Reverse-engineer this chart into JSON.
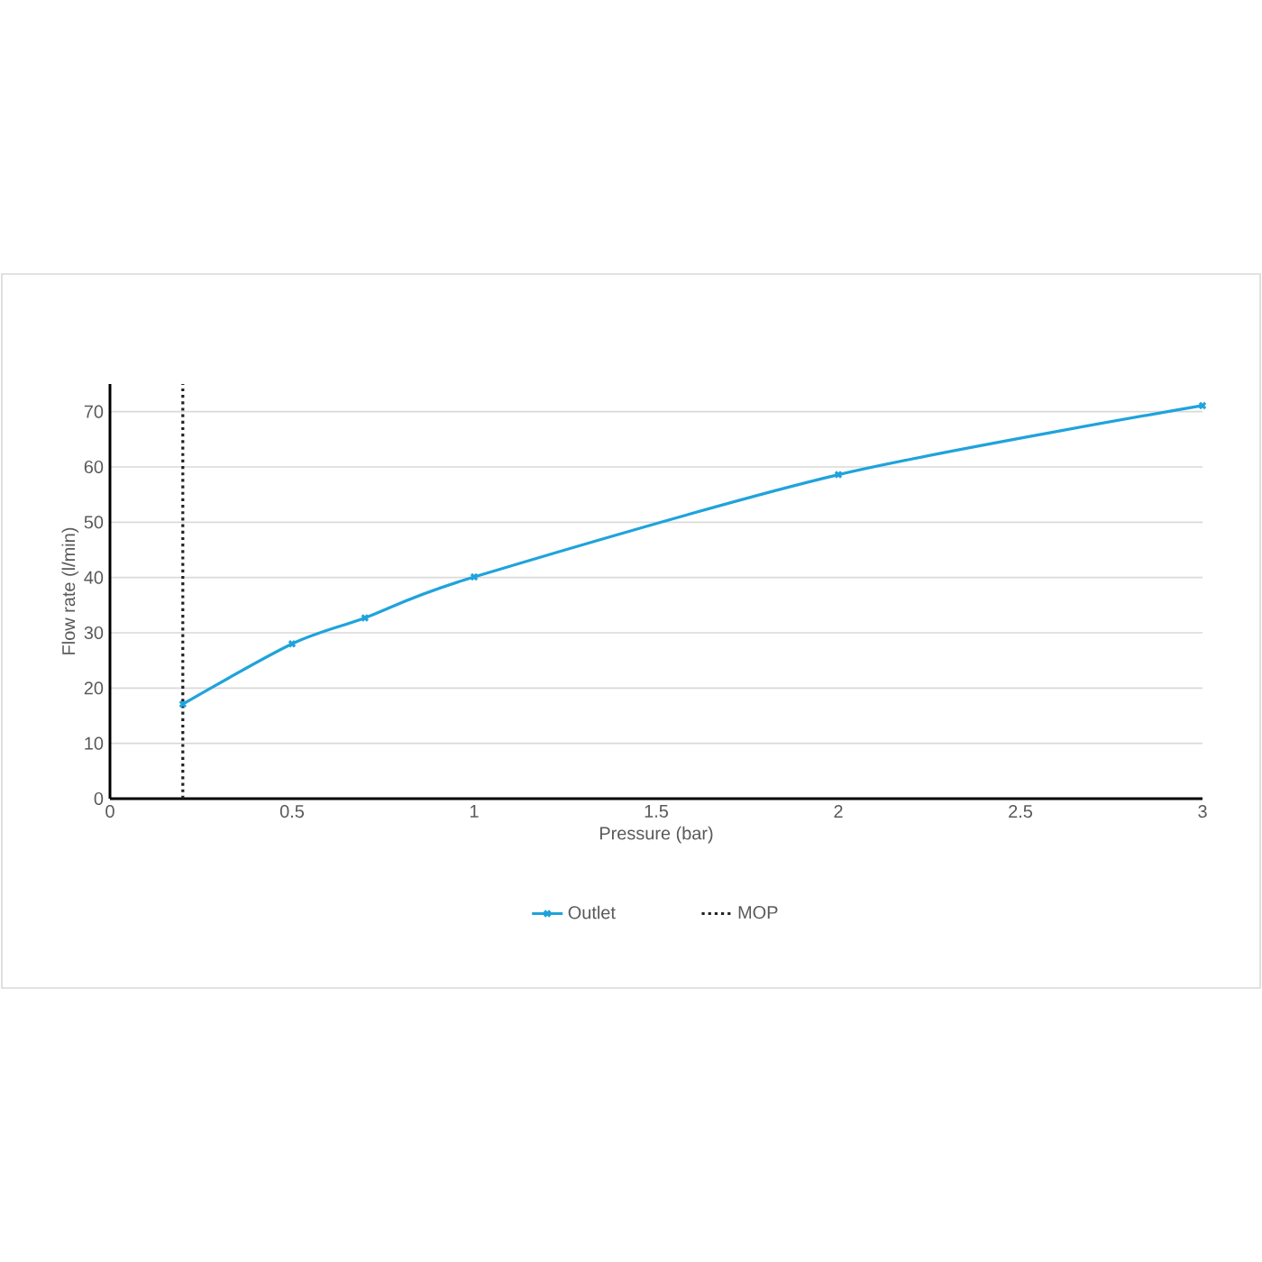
{
  "chart_data": {
    "type": "line",
    "xlabel": "Pressure (bar)",
    "ylabel": "Flow rate (l/min)",
    "x": [
      0.2,
      0.5,
      0.7,
      1,
      2,
      3
    ],
    "series": [
      {
        "name": "Outlet",
        "color": "#1fa3dc",
        "values": [
          17.1,
          28.0,
          32.7,
          40.1,
          58.6,
          71.1
        ]
      }
    ],
    "xlim": [
      0,
      3
    ],
    "xticks": [
      0,
      0.5,
      1,
      1.5,
      2,
      2.5,
      3
    ],
    "ylim": [
      0,
      75
    ],
    "yticks": [
      0,
      10,
      20,
      30,
      40,
      50,
      60,
      70
    ],
    "ref_lines": [
      {
        "axis": "x",
        "value": 0.2,
        "label": "MOP",
        "color": "#222222",
        "line_style": "dotted"
      }
    ],
    "grid": "y",
    "legend": "bottom",
    "marker": "cross",
    "line_style": "solid"
  }
}
